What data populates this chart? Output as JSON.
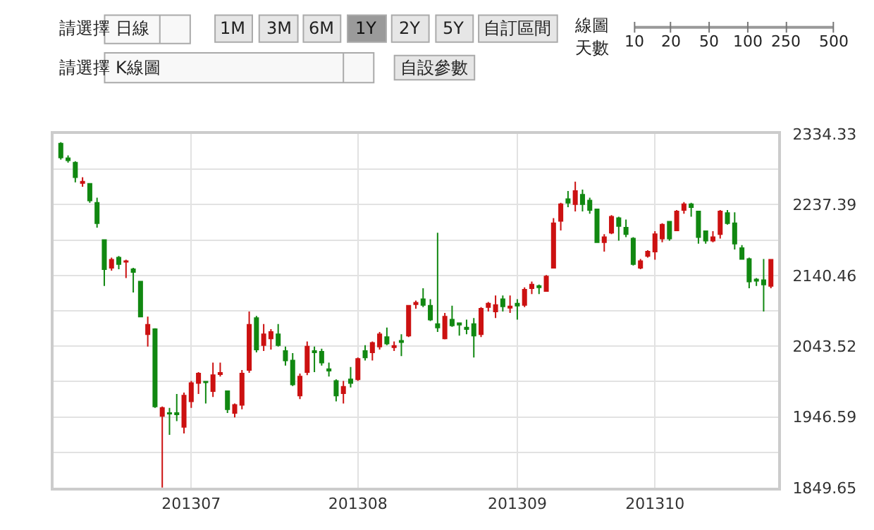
{
  "chart_data": [
    {
      "type": "other",
      "annotations": [
        "請選擇",
        "日線",
        "1M",
        "3M",
        "6M",
        "1Y",
        "2Y",
        "5Y",
        "自訂區間",
        "線圖",
        "天數",
        "10",
        "20",
        "50",
        "100",
        "250",
        "500",
        "請選擇",
        "K線圖",
        "自設參數"
      ]
    },
    {
      "type": "candlestick",
      "categories": [
        null,
        null,
        null,
        null,
        null,
        null,
        null,
        null,
        null,
        null,
        null,
        null,
        null,
        null,
        null,
        null,
        null,
        null,
        "201307",
        null,
        null,
        null,
        null,
        null,
        null,
        null,
        null,
        null,
        null,
        null,
        null,
        null,
        null,
        null,
        null,
        null,
        null,
        null,
        null,
        null,
        null,
        "201308",
        null,
        null,
        null,
        null,
        null,
        null,
        null,
        null,
        null,
        null,
        null,
        null,
        null,
        null,
        null,
        null,
        null,
        null,
        null,
        null,
        null,
        "201309",
        null,
        null,
        null,
        null,
        null,
        null,
        null,
        null,
        null,
        null,
        null,
        null,
        null,
        null,
        null,
        null,
        null,
        null,
        "201310",
        null,
        null,
        null,
        null,
        null,
        null,
        null,
        null,
        null,
        null,
        null,
        null,
        null,
        null,
        null,
        null
      ],
      "ohlc": [
        [
          2321,
          2323,
          2299,
          2302
        ],
        [
          2301,
          2305,
          2295,
          2298
        ],
        [
          2295,
          2297,
          2268,
          2275
        ],
        [
          2267,
          2275,
          2262,
          2269
        ],
        [
          2266,
          2267,
          2240,
          2243
        ],
        [
          2240,
          2247,
          2206,
          2212
        ],
        [
          2189,
          2190,
          2126,
          2149
        ],
        [
          2151,
          2165,
          2147,
          2162
        ],
        [
          2165,
          2167,
          2149,
          2156
        ],
        [
          2159,
          2162,
          2137,
          2160
        ],
        [
          2149,
          2151,
          2117,
          2145
        ],
        [
          2132,
          2133,
          2083,
          2084
        ],
        [
          2060,
          2084,
          2043,
          2073
        ],
        [
          2067,
          2068,
          1959,
          1961
        ],
        [
          1948,
          1961,
          1850,
          1959
        ],
        [
          1952,
          1959,
          1922,
          1951
        ],
        [
          1952,
          1978,
          1941,
          1950
        ],
        [
          1933,
          1980,
          1924,
          1976
        ],
        [
          1968,
          1996,
          1959,
          1993
        ],
        [
          1993,
          2008,
          1978,
          2006
        ],
        [
          1995,
          1996,
          1965,
          1994
        ],
        [
          1982,
          2021,
          1974,
          2004
        ],
        [
          2005,
          2021,
          2002,
          2007
        ],
        [
          1982,
          1983,
          1952,
          1957
        ],
        [
          1952,
          1965,
          1946,
          1963
        ],
        [
          1963,
          2011,
          1957,
          2006
        ],
        [
          2011,
          2091,
          2007,
          2073
        ],
        [
          2082,
          2085,
          2035,
          2039
        ],
        [
          2045,
          2074,
          2037,
          2060
        ],
        [
          2054,
          2067,
          2039,
          2063
        ],
        [
          2060,
          2074,
          2043,
          2045
        ],
        [
          2037,
          2043,
          2017,
          2024
        ],
        [
          2024,
          2034,
          1989,
          1991
        ],
        [
          1976,
          2006,
          1971,
          2002
        ],
        [
          2008,
          2050,
          2004,
          2043
        ],
        [
          2037,
          2043,
          2008,
          2035
        ],
        [
          2036,
          2040,
          2017,
          2021
        ],
        [
          2012,
          2021,
          2002,
          2010
        ],
        [
          1996,
          1998,
          1968,
          1976
        ],
        [
          1979,
          1996,
          1965,
          1988
        ],
        [
          1998,
          2015,
          1987,
          1993
        ],
        [
          1998,
          2028,
          1996,
          2026
        ],
        [
          2037,
          2045,
          2024,
          2028
        ],
        [
          2035,
          2050,
          2024,
          2048
        ],
        [
          2043,
          2063,
          2039,
          2060
        ],
        [
          2056,
          2069,
          2045,
          2047
        ],
        [
          2042,
          2050,
          2037,
          2044
        ],
        [
          2051,
          2060,
          2030,
          2049
        ],
        [
          2058,
          2100,
          2056,
          2099
        ],
        [
          2101,
          2106,
          2095,
          2103
        ],
        [
          2108,
          2123,
          2097,
          2100
        ],
        [
          2099,
          2108,
          2078,
          2080
        ],
        [
          2074,
          2199,
          2063,
          2069
        ],
        [
          2054,
          2089,
          2053,
          2084
        ],
        [
          2080,
          2099,
          2070,
          2072
        ],
        [
          2075,
          2076,
          2058,
          2073
        ],
        [
          2069,
          2080,
          2060,
          2067
        ],
        [
          2074,
          2082,
          2028,
          2058
        ],
        [
          2060,
          2097,
          2056,
          2095
        ],
        [
          2097,
          2104,
          2091,
          2102
        ],
        [
          2091,
          2113,
          2082,
          2100
        ],
        [
          2108,
          2113,
          2091,
          2098
        ],
        [
          2096,
          2113,
          2089,
          2098
        ],
        [
          2102,
          2108,
          2080,
          2099
        ],
        [
          2100,
          2124,
          2097,
          2121
        ],
        [
          2123,
          2132,
          2115,
          2128
        ],
        [
          2126,
          2128,
          2115,
          2124
        ],
        [
          2119,
          2141,
          2118,
          2139
        ],
        [
          2151,
          2219,
          2150,
          2212
        ],
        [
          2215,
          2240,
          2202,
          2238
        ],
        [
          2245,
          2256,
          2234,
          2240
        ],
        [
          2238,
          2269,
          2228,
          2256
        ],
        [
          2251,
          2258,
          2228,
          2238
        ],
        [
          2243,
          2247,
          2225,
          2230
        ],
        [
          2231,
          2232,
          2185,
          2186
        ],
        [
          2186,
          2197,
          2173,
          2193
        ],
        [
          2199,
          2223,
          2197,
          2221
        ],
        [
          2219,
          2221,
          2188,
          2208
        ],
        [
          2206,
          2217,
          2193,
          2197
        ],
        [
          2191,
          2193,
          2154,
          2156
        ],
        [
          2151,
          2163,
          2149,
          2160
        ],
        [
          2167,
          2175,
          2165,
          2173
        ],
        [
          2173,
          2201,
          2162,
          2197
        ],
        [
          2191,
          2212,
          2186,
          2210
        ],
        [
          2214,
          2215,
          2188,
          2191
        ],
        [
          2202,
          2230,
          2201,
          2228
        ],
        [
          2230,
          2241,
          2225,
          2238
        ],
        [
          2238,
          2240,
          2221,
          2234
        ],
        [
          2228,
          2229,
          2184,
          2193
        ],
        [
          2201,
          2202,
          2184,
          2188
        ],
        [
          2188,
          2201,
          2186,
          2193
        ],
        [
          2197,
          2230,
          2191,
          2228
        ],
        [
          2226,
          2230,
          2210,
          2212
        ],
        [
          2212,
          2227,
          2176,
          2184
        ],
        [
          2178,
          2182,
          2162,
          2163
        ],
        [
          2163,
          2165,
          2123,
          2132
        ],
        [
          2135,
          2137,
          2126,
          2133
        ],
        [
          2134,
          2163,
          2091,
          2128
        ],
        [
          2126,
          2163,
          2123,
          2162
        ]
      ],
      "colors": [
        "#118811",
        "#118811",
        "#118811",
        "#cc1111",
        "#118811",
        "#118811",
        "#118811",
        "#cc1111",
        "#118811",
        "#cc1111",
        "#118811",
        "#118811",
        "#cc1111",
        "#118811",
        "#cc1111",
        "#118811",
        "#118811",
        "#cc1111",
        "#cc1111",
        "#cc1111",
        "#118811",
        "#cc1111",
        "#cc1111",
        "#118811",
        "#cc1111",
        "#cc1111",
        "#cc1111",
        "#118811",
        "#cc1111",
        "#cc1111",
        "#118811",
        "#118811",
        "#118811",
        "#cc1111",
        "#cc1111",
        "#118811",
        "#118811",
        "#118811",
        "#118811",
        "#cc1111",
        "#118811",
        "#cc1111",
        "#118811",
        "#cc1111",
        "#cc1111",
        "#118811",
        "#cc1111",
        "#118811",
        "#cc1111",
        "#cc1111",
        "#118811",
        "#118811",
        "#118811",
        "#cc1111",
        "#118811",
        "#118811",
        "#118811",
        "#118811",
        "#cc1111",
        "#cc1111",
        "#cc1111",
        "#118811",
        "#cc1111",
        "#118811",
        "#cc1111",
        "#cc1111",
        "#118811",
        "#cc1111",
        "#cc1111",
        "#cc1111",
        "#118811",
        "#cc1111",
        "#118811",
        "#118811",
        "#118811",
        "#cc1111",
        "#cc1111",
        "#118811",
        "#118811",
        "#118811",
        "#cc1111",
        "#cc1111",
        "#cc1111",
        "#cc1111",
        "#118811",
        "#cc1111",
        "#cc1111",
        "#118811",
        "#118811",
        "#118811",
        "#cc1111",
        "#cc1111",
        "#118811",
        "#118811",
        "#118811",
        "#118811",
        "#118811",
        "#118811",
        "#cc1111"
      ],
      "ylim": [
        1849.65,
        2334.33
      ],
      "yticks": [
        1849.65,
        {
          "value": 1898.12,
          "label": null
        },
        1946.59,
        {
          "value": 1995.06,
          "label": null
        },
        2043.52,
        {
          "value": 2091.99,
          "label": null
        },
        2140.46,
        {
          "value": 2188.93,
          "label": null
        },
        2237.39,
        {
          "value": 2285.86,
          "label": null
        },
        2334.33
      ],
      "grid": true
    }
  ]
}
